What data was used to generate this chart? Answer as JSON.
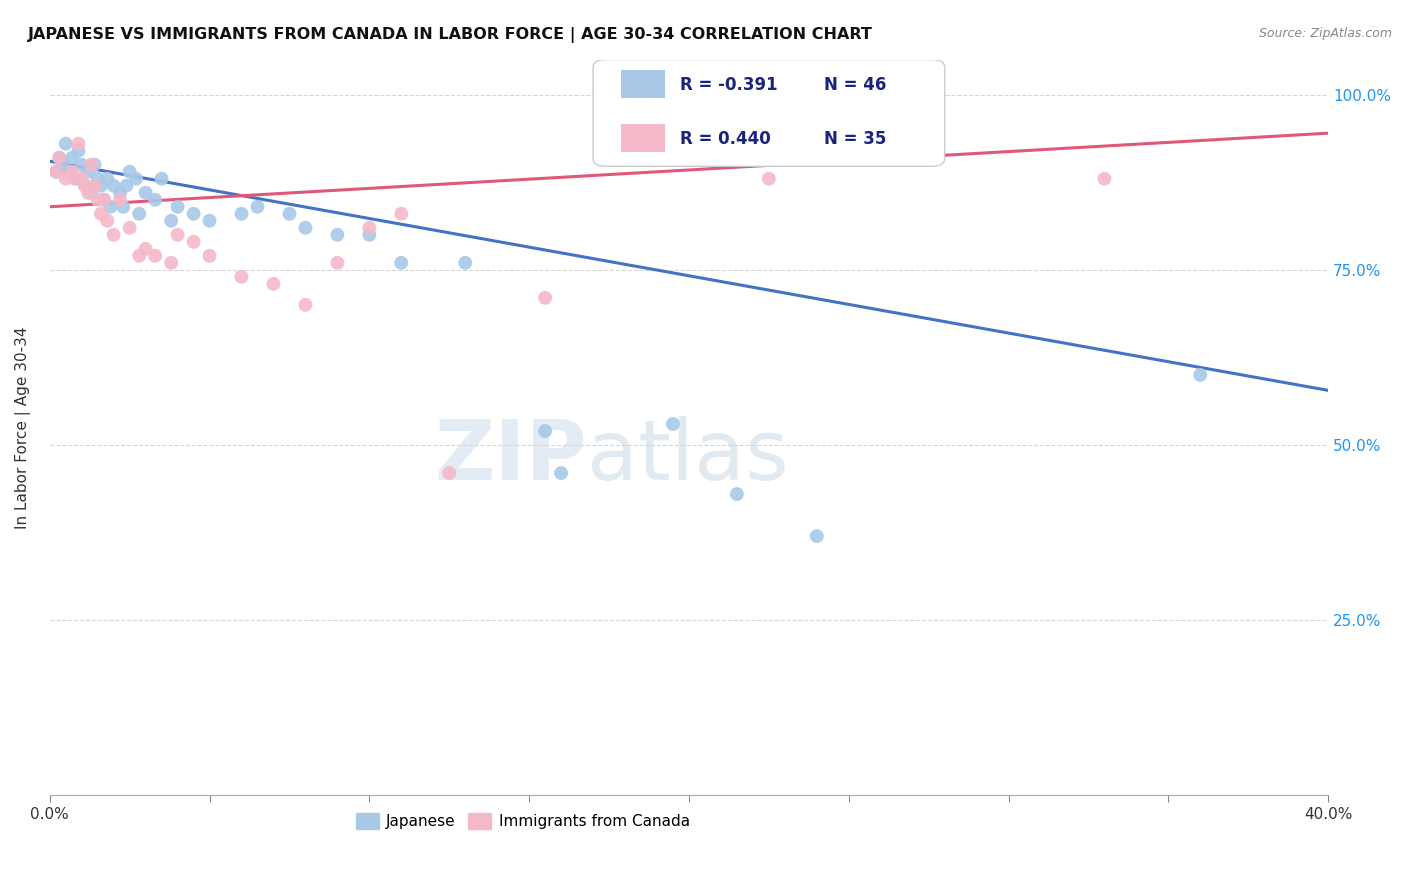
{
  "title": "JAPANESE VS IMMIGRANTS FROM CANADA IN LABOR FORCE | AGE 30-34 CORRELATION CHART",
  "source": "Source: ZipAtlas.com",
  "ylabel": "In Labor Force | Age 30-34",
  "xmin": 0.0,
  "xmax": 0.4,
  "ymin": 0.0,
  "ymax": 1.05,
  "yticks": [
    0.0,
    0.25,
    0.5,
    0.75,
    1.0
  ],
  "ytick_labels": [
    "",
    "25.0%",
    "50.0%",
    "75.0%",
    "100.0%"
  ],
  "xticks": [
    0.0,
    0.05,
    0.1,
    0.15,
    0.2,
    0.25,
    0.3,
    0.35,
    0.4
  ],
  "legend_r_japanese": "R = -0.391",
  "legend_n_japanese": "N = 46",
  "legend_r_canada": "R = 0.440",
  "legend_n_canada": "N = 35",
  "blue_color": "#a8c8e8",
  "pink_color": "#f4b8c8",
  "blue_line_color": "#4472c4",
  "pink_line_color": "#e05878",
  "watermark_zip": "ZIP",
  "watermark_atlas": "atlas",
  "japanese_scatter": [
    [
      0.002,
      0.89
    ],
    [
      0.003,
      0.91
    ],
    [
      0.004,
      0.9
    ],
    [
      0.005,
      0.93
    ],
    [
      0.006,
      0.89
    ],
    [
      0.007,
      0.91
    ],
    [
      0.008,
      0.88
    ],
    [
      0.009,
      0.92
    ],
    [
      0.01,
      0.9
    ],
    [
      0.011,
      0.87
    ],
    [
      0.012,
      0.89
    ],
    [
      0.013,
      0.86
    ],
    [
      0.014,
      0.9
    ],
    [
      0.015,
      0.88
    ],
    [
      0.016,
      0.87
    ],
    [
      0.017,
      0.85
    ],
    [
      0.018,
      0.88
    ],
    [
      0.019,
      0.84
    ],
    [
      0.02,
      0.87
    ],
    [
      0.022,
      0.86
    ],
    [
      0.023,
      0.84
    ],
    [
      0.024,
      0.87
    ],
    [
      0.025,
      0.89
    ],
    [
      0.027,
      0.88
    ],
    [
      0.028,
      0.83
    ],
    [
      0.03,
      0.86
    ],
    [
      0.033,
      0.85
    ],
    [
      0.035,
      0.88
    ],
    [
      0.038,
      0.82
    ],
    [
      0.04,
      0.84
    ],
    [
      0.045,
      0.83
    ],
    [
      0.05,
      0.82
    ],
    [
      0.06,
      0.83
    ],
    [
      0.065,
      0.84
    ],
    [
      0.075,
      0.83
    ],
    [
      0.08,
      0.81
    ],
    [
      0.09,
      0.8
    ],
    [
      0.1,
      0.8
    ],
    [
      0.11,
      0.76
    ],
    [
      0.13,
      0.76
    ],
    [
      0.155,
      0.52
    ],
    [
      0.16,
      0.46
    ],
    [
      0.195,
      0.53
    ],
    [
      0.215,
      0.43
    ],
    [
      0.24,
      0.37
    ],
    [
      0.36,
      0.6
    ]
  ],
  "canada_scatter": [
    [
      0.002,
      0.89
    ],
    [
      0.003,
      0.91
    ],
    [
      0.005,
      0.88
    ],
    [
      0.007,
      0.89
    ],
    [
      0.008,
      0.88
    ],
    [
      0.009,
      0.93
    ],
    [
      0.01,
      0.88
    ],
    [
      0.011,
      0.87
    ],
    [
      0.012,
      0.86
    ],
    [
      0.013,
      0.9
    ],
    [
      0.014,
      0.87
    ],
    [
      0.015,
      0.85
    ],
    [
      0.016,
      0.83
    ],
    [
      0.017,
      0.85
    ],
    [
      0.018,
      0.82
    ],
    [
      0.02,
      0.8
    ],
    [
      0.022,
      0.85
    ],
    [
      0.025,
      0.81
    ],
    [
      0.028,
      0.77
    ],
    [
      0.03,
      0.78
    ],
    [
      0.033,
      0.77
    ],
    [
      0.038,
      0.76
    ],
    [
      0.04,
      0.8
    ],
    [
      0.045,
      0.79
    ],
    [
      0.05,
      0.77
    ],
    [
      0.06,
      0.74
    ],
    [
      0.07,
      0.73
    ],
    [
      0.08,
      0.7
    ],
    [
      0.09,
      0.76
    ],
    [
      0.1,
      0.81
    ],
    [
      0.11,
      0.83
    ],
    [
      0.125,
      0.46
    ],
    [
      0.155,
      0.71
    ],
    [
      0.225,
      0.88
    ],
    [
      0.33,
      0.88
    ]
  ],
  "blue_trendline_x": [
    0.0,
    0.4
  ],
  "blue_trendline_y": [
    0.905,
    0.578
  ],
  "pink_trendline_x": [
    0.0,
    0.4
  ],
  "pink_trendline_y": [
    0.84,
    0.945
  ]
}
